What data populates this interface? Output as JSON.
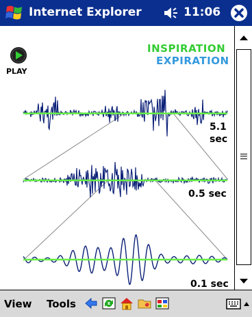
{
  "title_bar": {
    "app_title": "Internet Explorer",
    "time": "11:06",
    "icons": [
      "windows-start-flag-icon",
      "speaker-icon",
      "close-icon"
    ]
  },
  "content": {
    "play_label": "PLAY",
    "legend": {
      "inspiration": "INSPIRATION",
      "expiration": "EXPIRATION",
      "inspiration_color": "#33cc33",
      "expiration_color": "#3399dd"
    },
    "scales": [
      {
        "value": "5.1",
        "unit": "sec"
      },
      {
        "label": "0.5 sec"
      },
      {
        "label": "0.1 sec"
      }
    ],
    "colors": {
      "waveform": "#0a1f77",
      "baseline": "#66ee44",
      "zoom_lines": "#888888"
    }
  },
  "menu_bar": {
    "view": "View",
    "tools": "Tools",
    "icons": [
      "back-icon",
      "refresh-icon",
      "home-icon",
      "favorites-icon",
      "tab-icon",
      "keyboard-icon",
      "up-arrow-icon"
    ]
  }
}
